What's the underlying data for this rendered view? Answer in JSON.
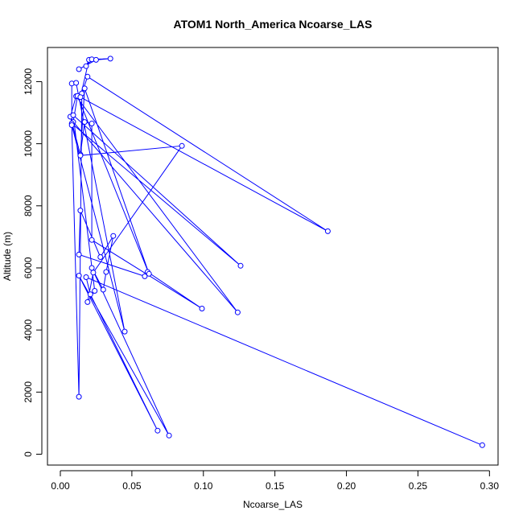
{
  "chart_data": {
    "type": "line",
    "title": "ATOM1 North_America Ncoarse_LAS",
    "xlabel": "Ncoarse_LAS",
    "ylabel": "Altitude (m)",
    "xlim": [
      -0.009,
      0.306
    ],
    "ylim": [
      -350,
      13100
    ],
    "xticks": [
      0.0,
      0.05,
      0.1,
      0.15,
      0.2,
      0.25,
      0.3
    ],
    "xtick_labels": [
      "0.00",
      "0.05",
      "0.10",
      "0.15",
      "0.20",
      "0.25",
      "0.30"
    ],
    "yticks": [
      0,
      2000,
      4000,
      6000,
      8000,
      10000,
      12000
    ],
    "ytick_labels": [
      "0",
      "2000",
      "4000",
      "6000",
      "8000",
      "10000",
      "12000"
    ],
    "grid": false,
    "series": [
      {
        "color": "#0000ff",
        "marker": "open-circle",
        "x": [
          0.295,
          0.018,
          0.021,
          0.068,
          0.013,
          0.076,
          0.022,
          0.03,
          0.032,
          0.037,
          0.028,
          0.014,
          0.013,
          0.059,
          0.061,
          0.099,
          0.022,
          0.022,
          0.017,
          0.014,
          0.007,
          0.011,
          0.124,
          0.009,
          0.012,
          0.062,
          0.017,
          0.014,
          0.085,
          0.023,
          0.019,
          0.024,
          0.009,
          0.126,
          0.008,
          0.008,
          0.011,
          0.045,
          0.008,
          0.013,
          0.015,
          0.019,
          0.187,
          0.014,
          0.02,
          0.018,
          0.022,
          0.035,
          0.025,
          0.013
        ],
        "y": [
          290,
          5700,
          5150,
          760,
          5750,
          600,
          6000,
          5300,
          5870,
          7030,
          6350,
          7850,
          6430,
          5730,
          5870,
          4690,
          6900,
          10650,
          10700,
          9650,
          10870,
          11530,
          4570,
          10700,
          11540,
          5810,
          11780,
          9620,
          9930,
          5850,
          4900,
          5260,
          10920,
          6070,
          10650,
          11940,
          11960,
          3950,
          10600,
          1850,
          11620,
          12160,
          7180,
          11500,
          12700,
          12500,
          12720,
          12740,
          12700,
          12400
        ]
      }
    ]
  }
}
